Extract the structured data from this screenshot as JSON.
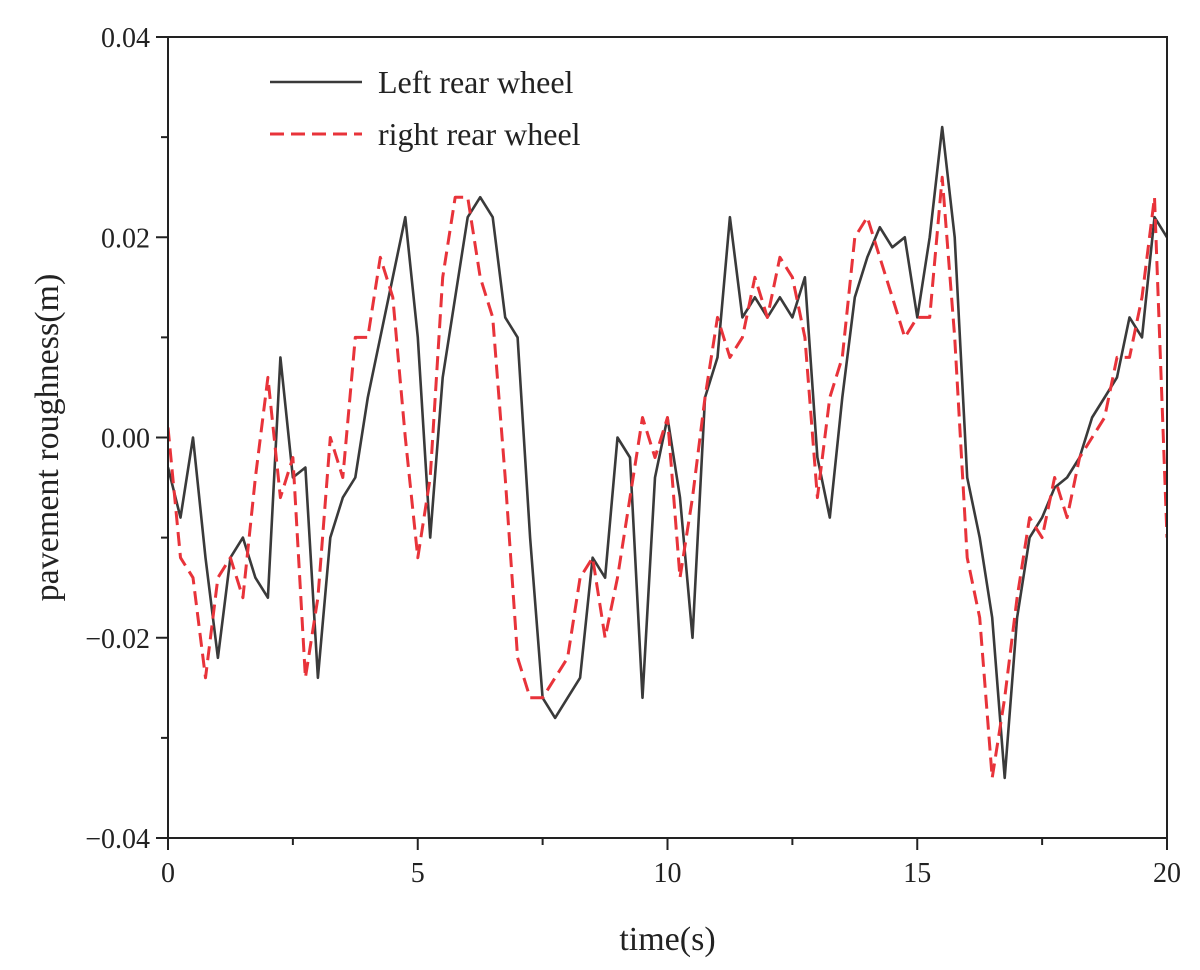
{
  "chart_data": {
    "type": "line",
    "title": "",
    "xlabel": "time(s)",
    "ylabel": "pavement roughness(m)",
    "xlim": [
      0,
      20
    ],
    "ylim": [
      -0.04,
      0.04
    ],
    "grid": false,
    "legend_position": "top-left",
    "x_ticks": [
      0,
      5,
      10,
      15,
      20
    ],
    "x_tick_labels": [
      "0",
      "5",
      "10",
      "15",
      "20"
    ],
    "y_ticks": [
      -0.04,
      -0.02,
      0.0,
      0.02,
      0.04
    ],
    "y_tick_labels": [
      "−0.04",
      "−0.02",
      "0.00",
      "0.02",
      "0.04"
    ],
    "x": [
      0.0,
      0.25,
      0.5,
      0.75,
      1.0,
      1.25,
      1.5,
      1.75,
      2.0,
      2.25,
      2.5,
      2.75,
      3.0,
      3.25,
      3.5,
      3.75,
      4.0,
      4.25,
      4.5,
      4.75,
      5.0,
      5.25,
      5.5,
      5.75,
      6.0,
      6.25,
      6.5,
      6.75,
      7.0,
      7.25,
      7.5,
      7.75,
      8.0,
      8.25,
      8.5,
      8.75,
      9.0,
      9.25,
      9.5,
      9.75,
      10.0,
      10.25,
      10.5,
      10.75,
      11.0,
      11.25,
      11.5,
      11.75,
      12.0,
      12.25,
      12.5,
      12.75,
      13.0,
      13.25,
      13.5,
      13.75,
      14.0,
      14.25,
      14.5,
      14.75,
      15.0,
      15.25,
      15.5,
      15.75,
      16.0,
      16.25,
      16.5,
      16.75,
      17.0,
      17.25,
      17.5,
      17.75,
      18.0,
      18.25,
      18.5,
      18.75,
      19.0,
      19.25,
      19.5,
      19.75,
      20.0
    ],
    "series": [
      {
        "name": "Left rear wheel",
        "color": "#3a3a3a",
        "dash": "solid",
        "values": [
          -0.003,
          -0.008,
          0.0,
          -0.012,
          -0.022,
          -0.012,
          -0.01,
          -0.014,
          -0.016,
          0.008,
          -0.004,
          -0.003,
          -0.024,
          -0.01,
          -0.006,
          -0.004,
          0.004,
          0.01,
          0.016,
          0.022,
          0.01,
          -0.01,
          0.006,
          0.014,
          0.022,
          0.024,
          0.022,
          0.012,
          0.01,
          -0.01,
          -0.026,
          -0.028,
          -0.026,
          -0.024,
          -0.012,
          -0.014,
          0.0,
          -0.002,
          -0.026,
          -0.004,
          0.002,
          -0.006,
          -0.02,
          0.004,
          0.008,
          0.022,
          0.012,
          0.014,
          0.012,
          0.014,
          0.012,
          0.016,
          -0.002,
          -0.008,
          0.004,
          0.014,
          0.018,
          0.021,
          0.019,
          0.02,
          0.012,
          0.02,
          0.031,
          0.02,
          -0.004,
          -0.01,
          -0.018,
          -0.034,
          -0.018,
          -0.01,
          -0.008,
          -0.005,
          -0.004,
          -0.002,
          0.002,
          0.004,
          0.006,
          0.012,
          0.01,
          0.022,
          0.02
        ]
      },
      {
        "name": "right rear wheel",
        "color": "#e8333a",
        "dash": "dashed",
        "values": [
          0.001,
          -0.012,
          -0.014,
          -0.024,
          -0.014,
          -0.012,
          -0.016,
          -0.004,
          0.006,
          -0.006,
          -0.002,
          -0.024,
          -0.016,
          0.0,
          -0.004,
          0.01,
          0.01,
          0.018,
          0.014,
          0.0,
          -0.012,
          -0.004,
          0.016,
          0.024,
          0.024,
          0.016,
          0.012,
          -0.004,
          -0.022,
          -0.026,
          -0.026,
          -0.024,
          -0.022,
          -0.014,
          -0.012,
          -0.02,
          -0.014,
          -0.006,
          0.002,
          -0.002,
          0.002,
          -0.014,
          -0.006,
          0.004,
          0.012,
          0.008,
          0.01,
          0.016,
          0.012,
          0.018,
          0.016,
          0.01,
          -0.006,
          0.004,
          0.008,
          0.02,
          0.022,
          0.018,
          0.014,
          0.01,
          0.012,
          0.012,
          0.026,
          0.01,
          -0.012,
          -0.018,
          -0.034,
          -0.026,
          -0.016,
          -0.008,
          -0.01,
          -0.004,
          -0.008,
          -0.002,
          0.0,
          0.002,
          0.008,
          0.008,
          0.014,
          0.024,
          -0.01
        ]
      }
    ]
  }
}
